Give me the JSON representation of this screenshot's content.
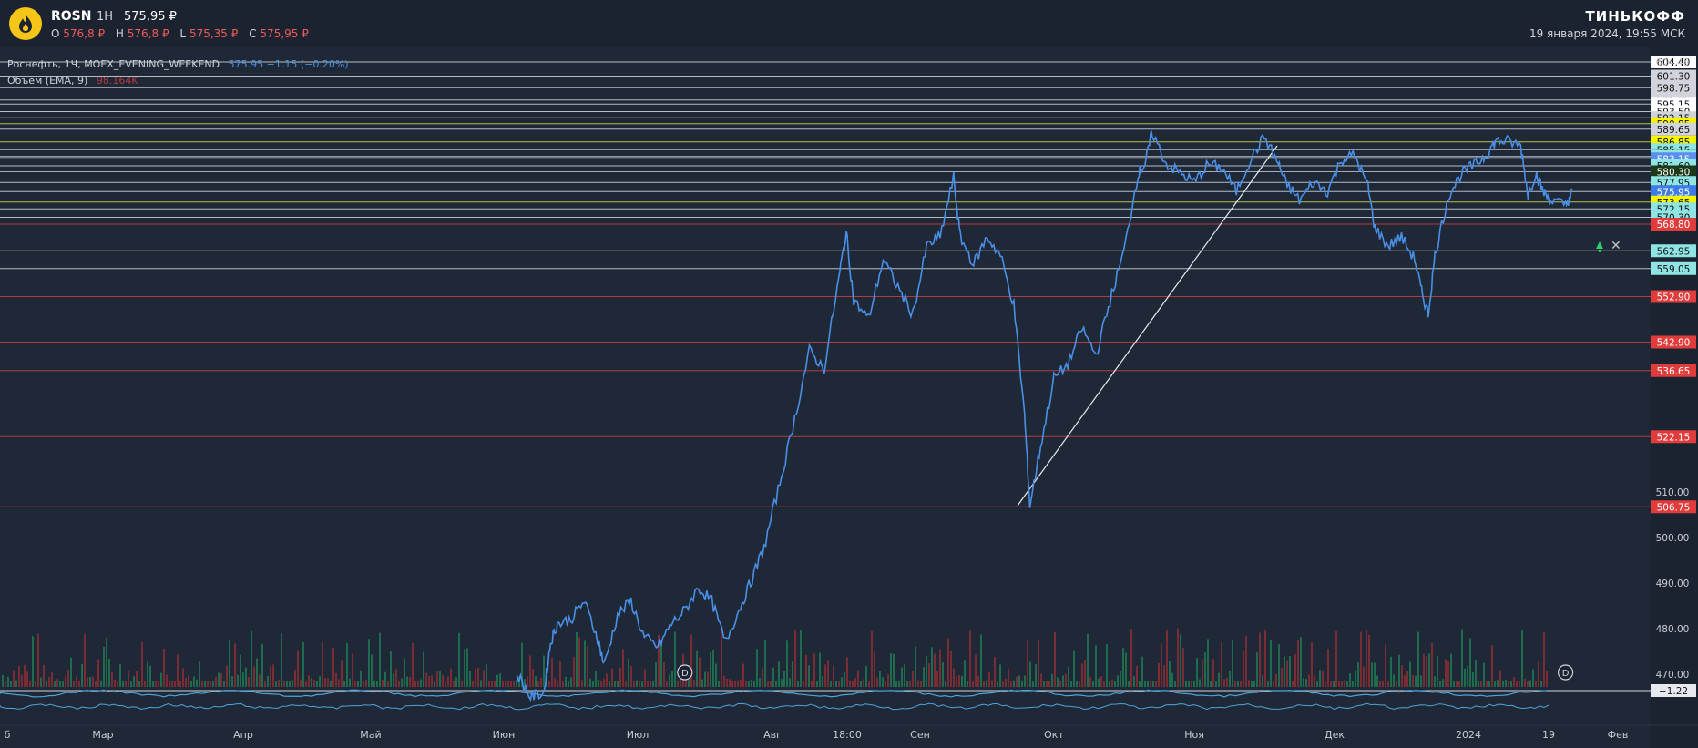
{
  "header": {
    "symbol": "ROSN",
    "timeframe": "1H",
    "last": "575,95 ₽",
    "ohlc": [
      {
        "label": "O",
        "value": "576,8 ₽"
      },
      {
        "label": "H",
        "value": "576,8 ₽"
      },
      {
        "label": "L",
        "value": "575,35 ₽"
      },
      {
        "label": "C",
        "value": "575,95 ₽"
      }
    ],
    "brand": "ТИНЬКОФФ",
    "datetime": "19 января 2024, 19:55 МСК"
  },
  "legend": {
    "series_label": "Роснефть, 1Ч, MOEX_EVENING_WEEKEND",
    "series_value": "575.95 −1.15 (−0.20%)",
    "volume_label": "Объём (EMA, 9)",
    "volume_value": "98.164K"
  },
  "chart_data": {
    "type": "line",
    "ylim": [
      462,
      606
    ],
    "x_ticks": [
      {
        "label": "б",
        "x": 0
      },
      {
        "label": "Мар",
        "x": 1
      },
      {
        "label": "Апр",
        "x": 2
      },
      {
        "label": "Май",
        "x": 3
      },
      {
        "label": "Июн",
        "x": 4
      },
      {
        "label": "Июл",
        "x": 5
      },
      {
        "label": "Авг",
        "x": 6
      },
      {
        "label": "18:00",
        "x": 6.6
      },
      {
        "label": "Сен",
        "x": 7
      },
      {
        "label": "Окт",
        "x": 8
      },
      {
        "label": "Ноя",
        "x": 9
      },
      {
        "label": "Дек",
        "x": 10
      },
      {
        "label": "2024",
        "x": 11
      },
      {
        "label": "19",
        "x": 11.6
      },
      {
        "label": "Фев",
        "x": 12
      }
    ],
    "y_ticks": [
      604.45,
      510.0,
      500.0,
      490.0,
      480.0,
      470.0
    ],
    "series": [
      {
        "values": [
          [
            4.1,
            470
          ],
          [
            4.2,
            465
          ],
          [
            4.3,
            466
          ],
          [
            4.35,
            477
          ],
          [
            4.4,
            481
          ],
          [
            4.5,
            482
          ],
          [
            4.6,
            486
          ],
          [
            4.7,
            478
          ],
          [
            4.75,
            472
          ],
          [
            4.85,
            483
          ],
          [
            4.95,
            486
          ],
          [
            5.05,
            478
          ],
          [
            5.15,
            476
          ],
          [
            5.25,
            481
          ],
          [
            5.35,
            484
          ],
          [
            5.45,
            489
          ],
          [
            5.55,
            486
          ],
          [
            5.65,
            477
          ],
          [
            5.75,
            484
          ],
          [
            5.85,
            491
          ],
          [
            5.95,
            499
          ],
          [
            6.05,
            512
          ],
          [
            6.15,
            526
          ],
          [
            6.25,
            541
          ],
          [
            6.35,
            537
          ],
          [
            6.45,
            557
          ],
          [
            6.5,
            567
          ],
          [
            6.55,
            552
          ],
          [
            6.65,
            548
          ],
          [
            6.75,
            561
          ],
          [
            6.85,
            555
          ],
          [
            6.95,
            549
          ],
          [
            7.05,
            564
          ],
          [
            7.15,
            566
          ],
          [
            7.25,
            579
          ],
          [
            7.3,
            566
          ],
          [
            7.4,
            560
          ],
          [
            7.5,
            566
          ],
          [
            7.6,
            562
          ],
          [
            7.7,
            551
          ],
          [
            7.78,
            527
          ],
          [
            7.82,
            507
          ],
          [
            7.9,
            520
          ],
          [
            8.0,
            535
          ],
          [
            8.1,
            538
          ],
          [
            8.2,
            546
          ],
          [
            8.3,
            540
          ],
          [
            8.4,
            552
          ],
          [
            8.5,
            563
          ],
          [
            8.6,
            580
          ],
          [
            8.65,
            582
          ],
          [
            8.7,
            589
          ],
          [
            8.8,
            582
          ],
          [
            8.9,
            580
          ],
          [
            9.0,
            578
          ],
          [
            9.1,
            582
          ],
          [
            9.2,
            581
          ],
          [
            9.3,
            576
          ],
          [
            9.4,
            583
          ],
          [
            9.5,
            588
          ],
          [
            9.6,
            582
          ],
          [
            9.65,
            578
          ],
          [
            9.75,
            574
          ],
          [
            9.85,
            578
          ],
          [
            9.95,
            576
          ],
          [
            10.05,
            583
          ],
          [
            10.15,
            584
          ],
          [
            10.25,
            577
          ],
          [
            10.3,
            568
          ],
          [
            10.4,
            564
          ],
          [
            10.5,
            566
          ],
          [
            10.6,
            561
          ],
          [
            10.65,
            554
          ],
          [
            10.7,
            549
          ],
          [
            10.75,
            562
          ],
          [
            10.85,
            575
          ],
          [
            10.95,
            580
          ],
          [
            11.05,
            582
          ],
          [
            11.12,
            584
          ],
          [
            11.18,
            587
          ],
          [
            11.26,
            587
          ],
          [
            11.35,
            586
          ],
          [
            11.4,
            575
          ],
          [
            11.45,
            580
          ],
          [
            11.5,
            576
          ],
          [
            11.55,
            574
          ],
          [
            11.65,
            573
          ],
          [
            11.7,
            576
          ]
        ]
      }
    ],
    "price_labels": [
      {
        "price": 604.4,
        "label": "604.40",
        "color": "#ffffff"
      },
      {
        "price": 601.3,
        "label": "601.30",
        "color": "#d1d4dc"
      },
      {
        "price": 598.75,
        "label": "598.75",
        "color": "#d1d4dc"
      },
      {
        "price": 596.05,
        "label": "596.05",
        "color": "#d1d4dc"
      },
      {
        "price": 595.15,
        "label": "595.15",
        "color": "#ffffff"
      },
      {
        "price": 593.5,
        "label": "593.50",
        "color": "#ffffff"
      },
      {
        "price": 592.15,
        "label": "592.15",
        "color": "#d1d4dc"
      },
      {
        "price": 590.85,
        "label": "590.85",
        "color": "#f5f500"
      },
      {
        "price": 589.65,
        "label": "589.65",
        "color": "#d1d4dc"
      },
      {
        "price": 586.85,
        "label": "586.85",
        "color": "#f5f500"
      },
      {
        "price": 585.15,
        "label": "585.15",
        "color": "#8fe4e4"
      },
      {
        "price": 583.65,
        "label": "583.65",
        "color": "#1e8c3c"
      },
      {
        "price": 583.6,
        "label": "583.60",
        "color": "#8fe4e4"
      },
      {
        "price": 583.15,
        "label": "583.15",
        "color": "#5a8ef0"
      },
      {
        "price": 581.6,
        "label": "581.60",
        "color": "#8fe4e4"
      },
      {
        "price": 580.3,
        "label": "580.30",
        "color": "#1a3a1a"
      },
      {
        "price": 577.95,
        "label": "577.95",
        "color": "#8fe4e4"
      },
      {
        "price": 575.95,
        "label": "575.95",
        "color": "#3d7be8"
      },
      {
        "price": 573.65,
        "label": "573.65",
        "color": "#f5f500"
      },
      {
        "price": 572.15,
        "label": "572.15",
        "color": "#8fe4e4"
      },
      {
        "price": 570.3,
        "label": "570.30",
        "color": "#8fe4e4"
      },
      {
        "price": 568.8,
        "label": "568.80",
        "color": "#e03c3c"
      },
      {
        "price": 562.95,
        "label": "562.95",
        "color": "#8fe4e4"
      },
      {
        "price": 559.05,
        "label": "559.05",
        "color": "#8fe4e4"
      },
      {
        "price": 552.9,
        "label": "552.90",
        "color": "#e03c3c"
      },
      {
        "price": 542.9,
        "label": "542.90",
        "color": "#e03c3c"
      },
      {
        "price": 536.65,
        "label": "536.65",
        "color": "#e03c3c"
      },
      {
        "price": 522.15,
        "label": "522.15",
        "color": "#e03c3c"
      },
      {
        "price": 506.75,
        "label": "506.75",
        "color": "#e03c3c"
      }
    ],
    "oscillator_value": "−1.22",
    "markers": [
      {
        "label": "D",
        "x": 5.35
      },
      {
        "label": "D",
        "x": 11.65
      }
    ]
  }
}
